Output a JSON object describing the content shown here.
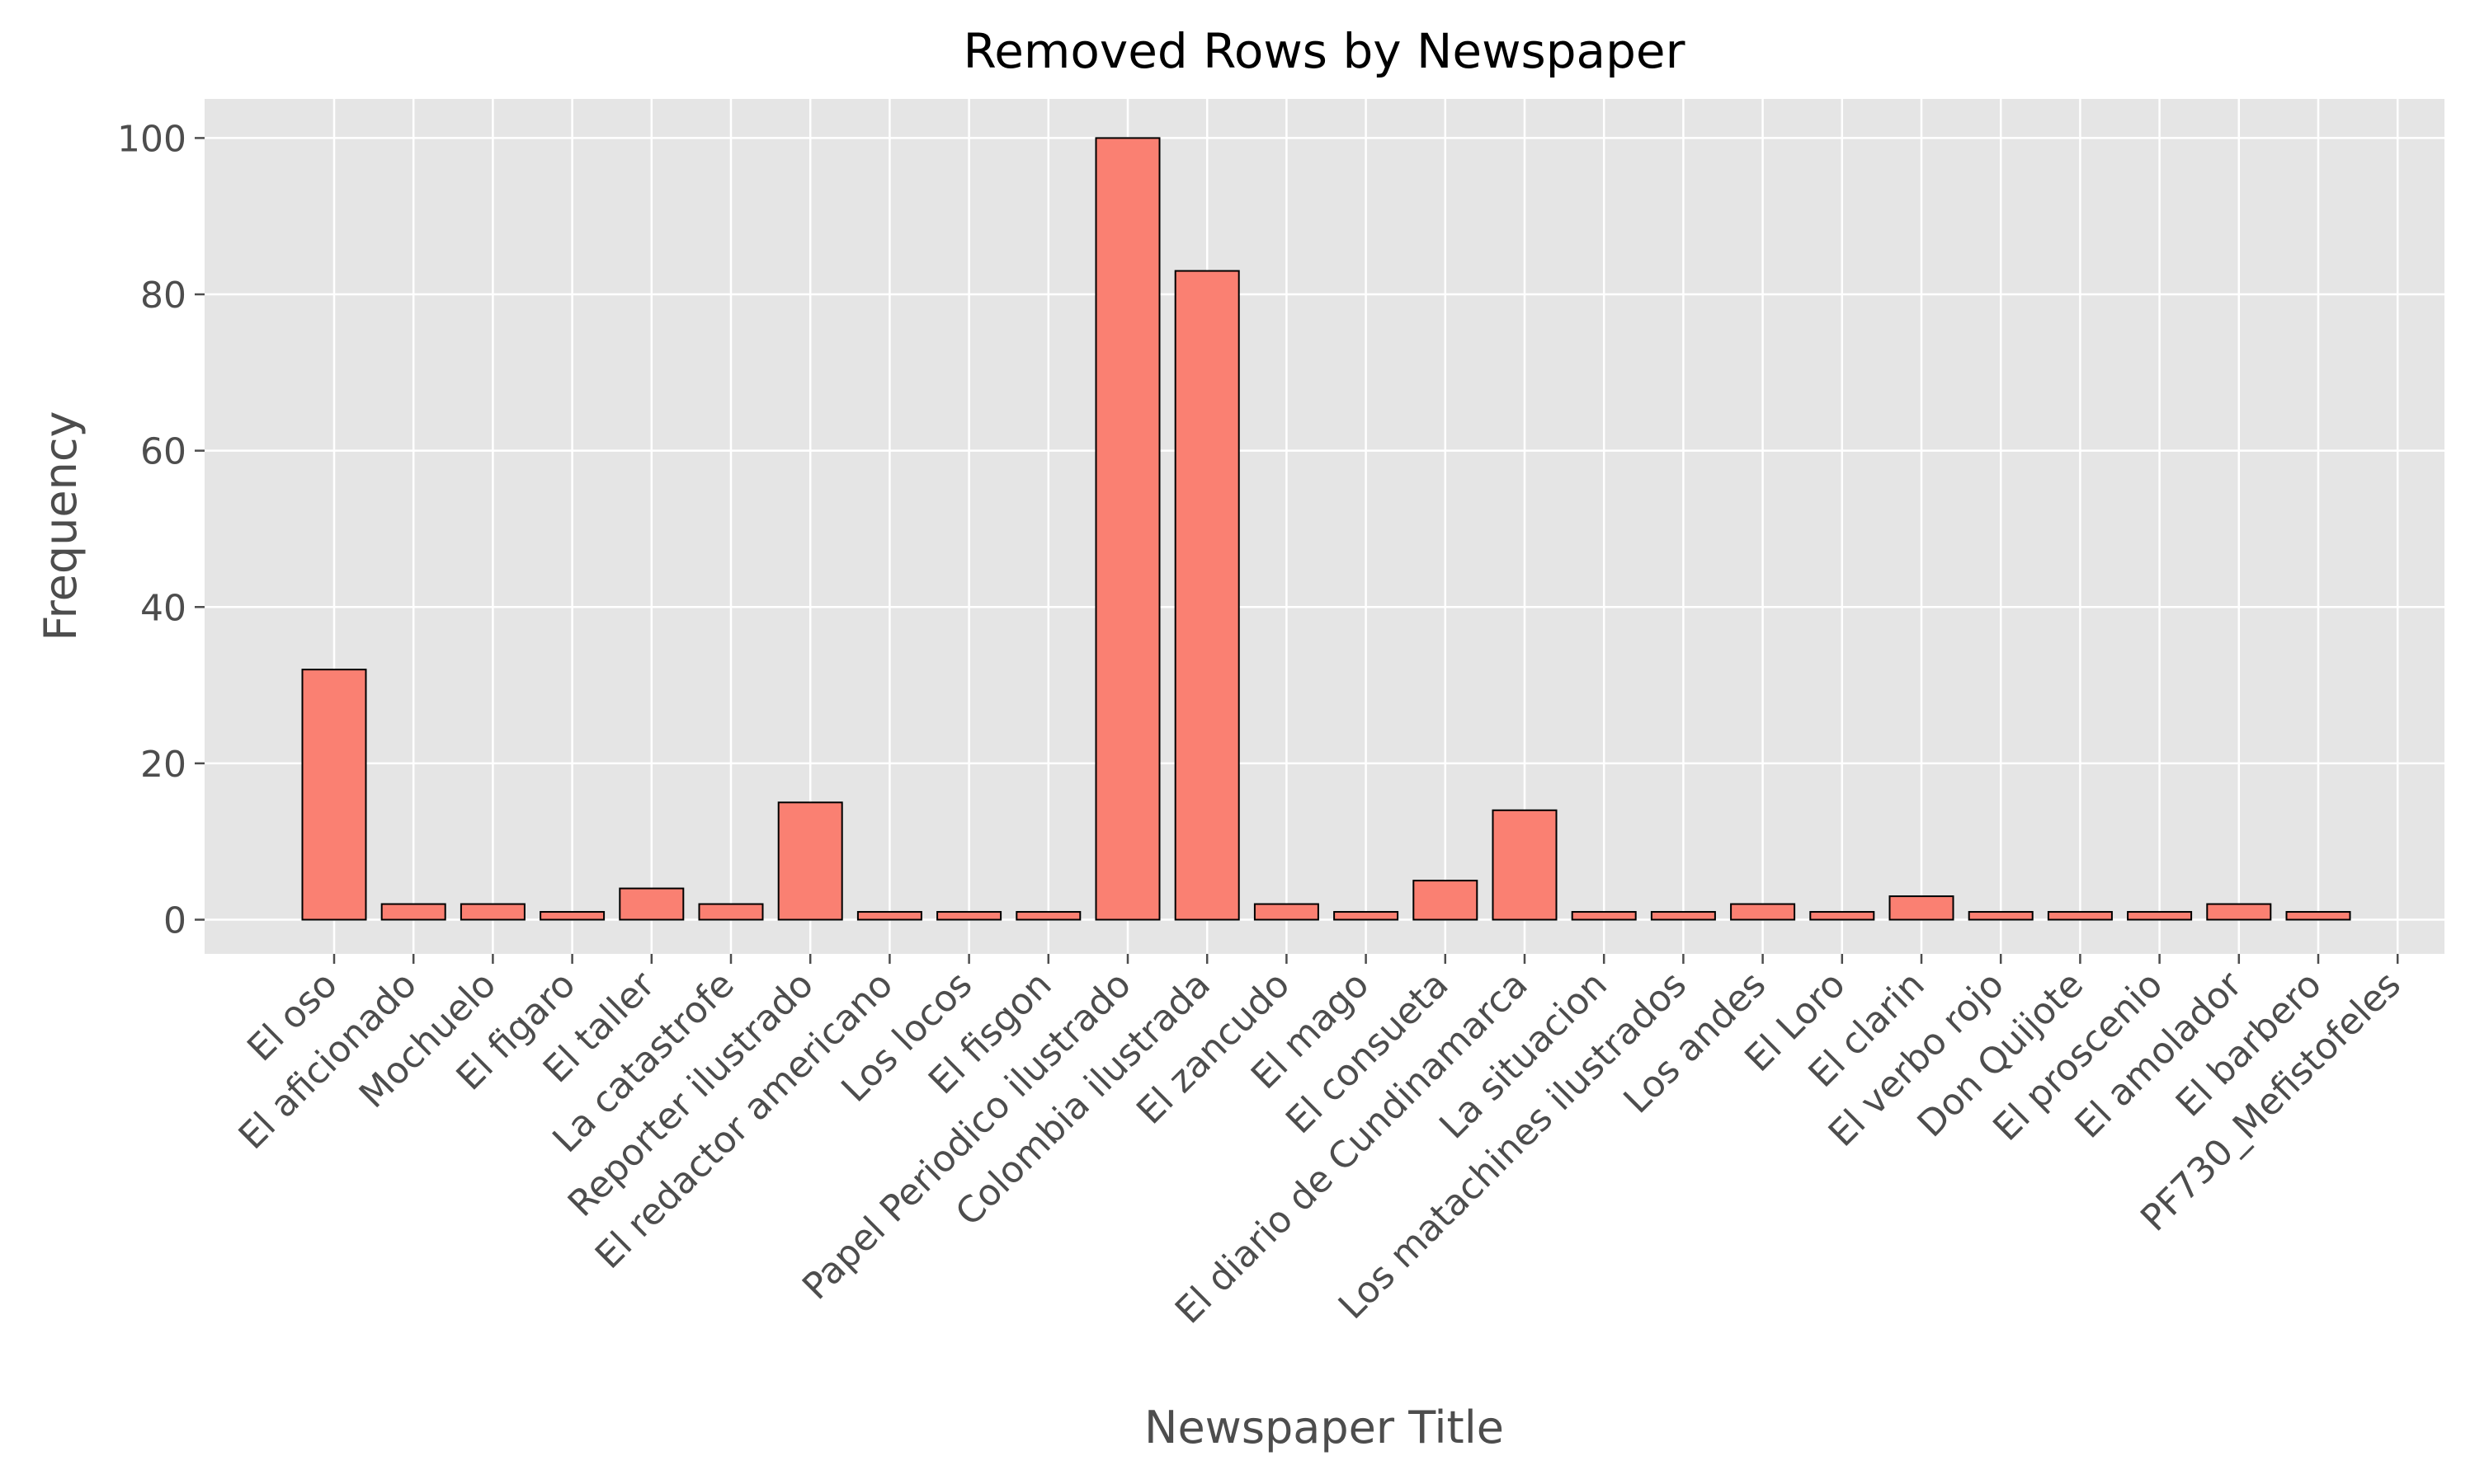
{
  "chart_data": {
    "type": "bar",
    "title": "Removed Rows by Newspaper",
    "xlabel": "Newspaper Title",
    "ylabel": "Frequency",
    "categories": [
      "El oso",
      "El aficionado",
      "Mochuelo",
      "El figaro",
      "El taller",
      "La catastrofe",
      "Reporter ilustrado",
      "El redactor americano",
      "Los locos",
      "El fisgon",
      "Papel Periodico ilustrado",
      "Colombia ilustrada",
      "El zancudo",
      "El mago",
      "El consueta",
      "El diario de Cundinamarca",
      "La situacion",
      "Los matachines ilustrados",
      "Los andes",
      "El Loro",
      "El clarin",
      "El verbo rojo",
      "Don Quijote",
      "El proscenio",
      "El amolador",
      "El barbero",
      "PF730_Mefistofeles"
    ],
    "values": [
      32,
      2,
      2,
      1,
      4,
      2,
      15,
      1,
      1,
      1,
      100,
      83,
      2,
      1,
      5,
      14,
      1,
      1,
      2,
      1,
      3,
      1,
      1,
      1,
      2,
      1,
      0
    ],
    "yticks": [
      0,
      20,
      40,
      60,
      80,
      100
    ],
    "ylim": [
      0,
      105
    ],
    "grid": true,
    "colors": {
      "bar_fill": "#fa8072",
      "bar_edge": "#000000",
      "plot_background": "#e5e5e5",
      "grid": "#ffffff",
      "text": "#4d4d4d"
    }
  }
}
